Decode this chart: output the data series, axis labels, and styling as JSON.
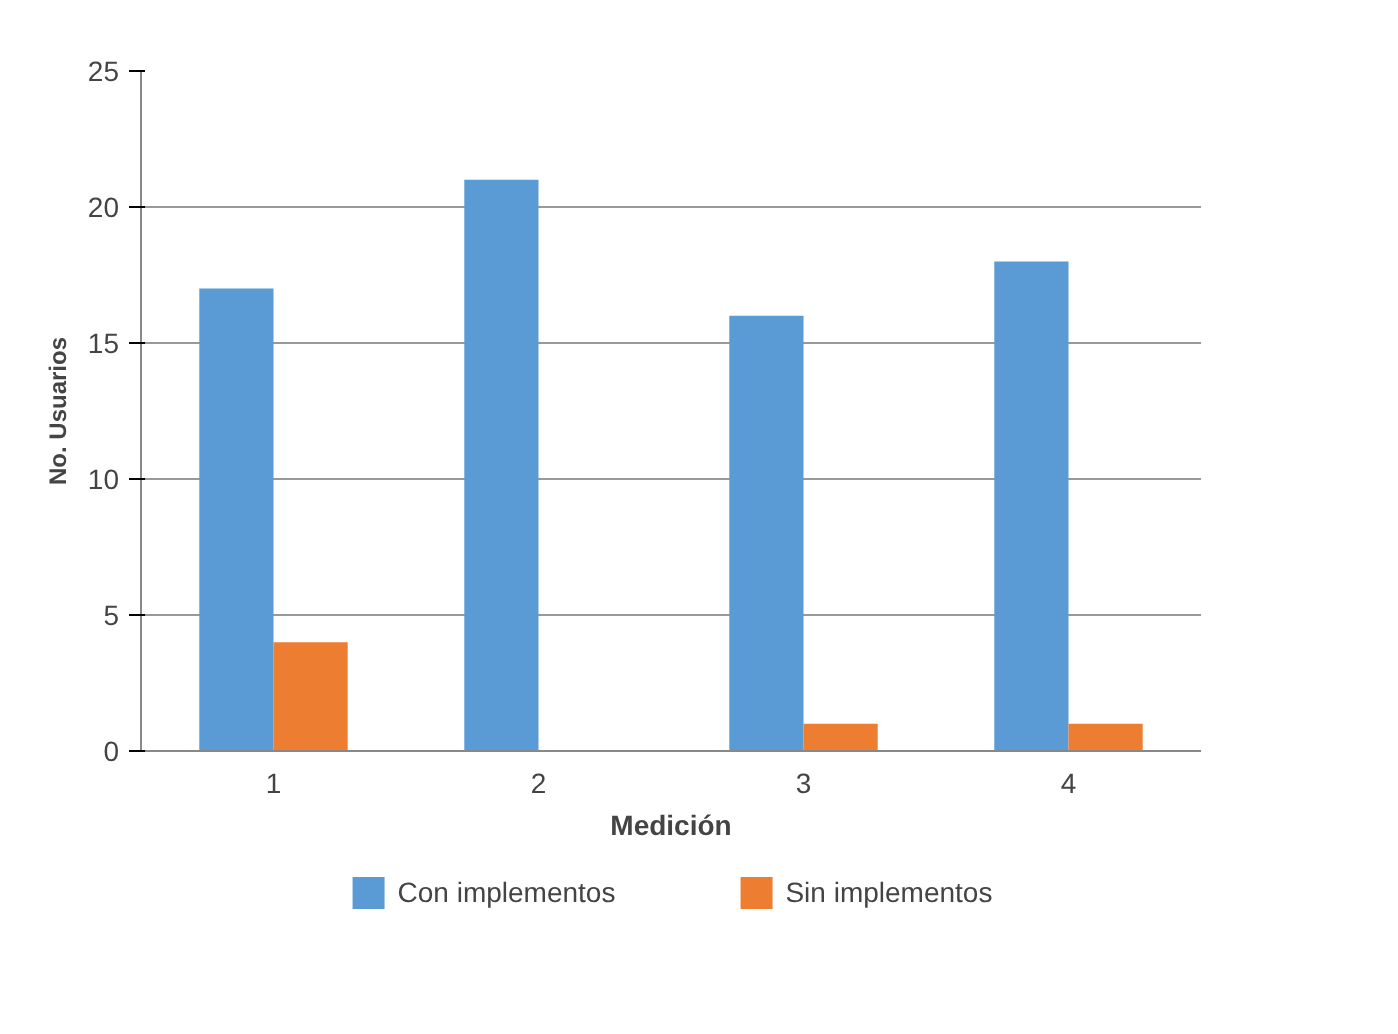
{
  "chart_data": {
    "type": "bar",
    "xlabel": "Medición",
    "ylabel": "No. Usuarios",
    "categories": [
      "1",
      "2",
      "3",
      "4"
    ],
    "series": [
      {
        "name": "Con implementos",
        "color": "#5b9bd5",
        "values": [
          17,
          21,
          16,
          18
        ]
      },
      {
        "name": "Sin implementos",
        "color": "#ed7d31",
        "values": [
          4,
          0,
          1,
          1
        ]
      }
    ],
    "ylim": [
      0,
      25
    ],
    "yticks": [
      0,
      5,
      10,
      15,
      20,
      25
    ],
    "grid": "y",
    "legend": "bottom"
  }
}
